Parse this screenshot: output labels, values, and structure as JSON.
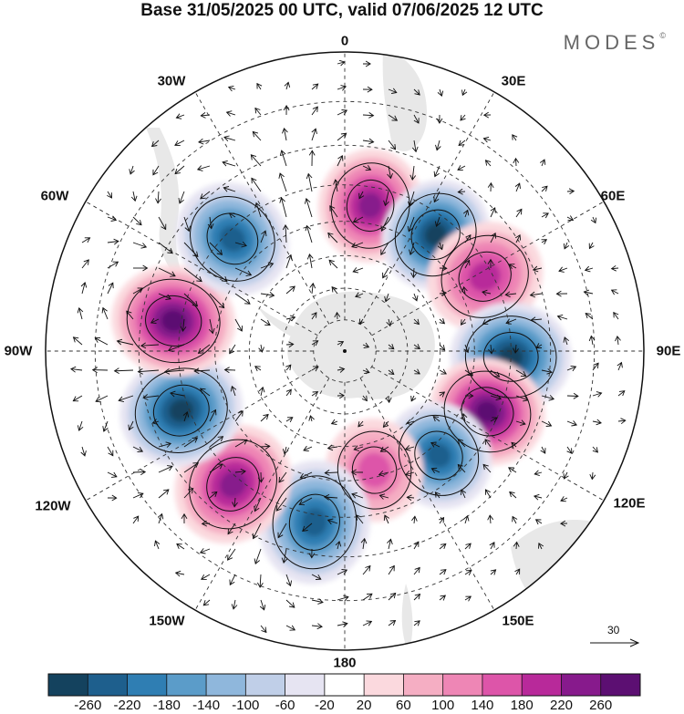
{
  "title": "Base 31/05/2025 00 UTC, valid 07/06/2025 12 UTC",
  "brand": "MODES",
  "brand_mark": "©",
  "longitude_labels": {
    "top": "0",
    "top_right": "30E",
    "right_upper": "60E",
    "right": "90E",
    "right_lower": "120E",
    "bottom_right": "150E",
    "bottom": "180",
    "bottom_left": "150W",
    "left_lower": "120W",
    "left": "90W",
    "left_upper": "60W",
    "top_left": "30W"
  },
  "reference_vector": {
    "label": "30"
  },
  "colorbar": {
    "ticks": [
      "-260",
      "-220",
      "-180",
      "-140",
      "-100",
      "-60",
      "-20",
      "20",
      "60",
      "100",
      "140",
      "180",
      "220",
      "260"
    ],
    "colors": [
      "#14425e",
      "#1e5f8d",
      "#2f7eb3",
      "#5b9cc9",
      "#8fb7dc",
      "#c0cfe8",
      "#e6e4f2",
      "#ffffff",
      "#fbd9de",
      "#f5aec3",
      "#ee86b5",
      "#dd55a9",
      "#b8299a",
      "#871a8c",
      "#5c0f72"
    ]
  },
  "chart_data": {
    "type": "polar-stereographic-anomaly-map",
    "projection": "South polar stereographic",
    "field_units_range": [
      -260,
      260
    ],
    "anomaly_centers": [
      {
        "lon": 10,
        "lat": -45,
        "value": 240
      },
      {
        "lon": 38,
        "lat": -45,
        "value": -260
      },
      {
        "lon": 62,
        "lat": -42,
        "value": 200
      },
      {
        "lon": 92,
        "lat": -40,
        "value": -260
      },
      {
        "lon": 113,
        "lat": -43,
        "value": 270
      },
      {
        "lon": 138,
        "lat": -47,
        "value": -210
      },
      {
        "lon": 166,
        "lat": -52,
        "value": 150
      },
      {
        "lon": 190,
        "lat": -38,
        "value": -230
      },
      {
        "lon": 220,
        "lat": -38,
        "value": 220
      },
      {
        "lon": 250,
        "lat": -38,
        "value": -260
      },
      {
        "lon": 280,
        "lat": -38,
        "value": 280
      },
      {
        "lon": 315,
        "lat": -42,
        "value": -240
      }
    ]
  }
}
